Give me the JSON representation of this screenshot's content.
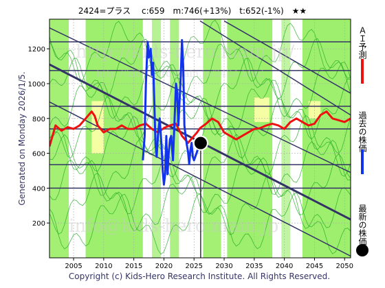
{
  "chart_data": {
    "type": "line",
    "title": "2424=プラス　 c:659　m:746(+13%)　t:652(-1%)　★★",
    "side_label": "Generated on Monday 2026/1/5.",
    "footer": "Copyright (c) Kids-Hero Research Institute. All Rights Reserved.",
    "watermarks": [
      "http://kids-hero.main.jp/",
      "http://kids-hero.main.jp/2424.html",
      "info@kids-hero.main.jp"
    ],
    "xlim": [
      2001,
      2051
    ],
    "ylim": [
      0,
      1370
    ],
    "x_ticks": [
      2005,
      2010,
      2015,
      2020,
      2025,
      2030,
      2035,
      2040,
      2045,
      2050
    ],
    "y_ticks": [
      200,
      400,
      600,
      800,
      1000,
      1200
    ],
    "grid": true,
    "legend_position": "right-vertical",
    "colors": {
      "ai_forecast": "#ee1111",
      "past_price": "#1133ee",
      "latest_marker": "#000000",
      "green_band": "#99ee66",
      "green_lines": "#22aa22",
      "channel_lines": "#333366",
      "horizontal_levels": "#333366",
      "cursor_line": "#333333"
    },
    "legend": [
      {
        "label": "ＡＩ予測",
        "color": "#ee1111",
        "marker": "line"
      },
      {
        "label": "過去の株価",
        "color": "#1133ee",
        "marker": "line"
      },
      {
        "label": "最新の株価",
        "color": "#000000",
        "marker": "dot"
      }
    ],
    "horizontal_levels": [
      1240,
      1075,
      870,
      740,
      535,
      400
    ],
    "channel_lines": [
      {
        "from": [
          2001,
          1320
        ],
        "to": [
          2051,
          490
        ],
        "width": 1.5
      },
      {
        "from": [
          2001,
          1110
        ],
        "to": [
          2051,
          220
        ],
        "width": 3
      },
      {
        "from": [
          2001,
          895
        ],
        "to": [
          2051,
          10
        ],
        "width": 1.5
      },
      {
        "from": [
          2026,
          1360
        ],
        "to": [
          2051,
          820
        ],
        "width": 1.5
      },
      {
        "from": [
          2030,
          1360
        ],
        "to": [
          2051,
          945
        ],
        "width": 1.5
      }
    ],
    "latest": {
      "x": 2026.1,
      "y": 659
    },
    "series": [
      {
        "name": "ＡＩ予測",
        "x": [
          2001,
          2001.5,
          2002,
          2002.5,
          2003,
          2004,
          2005,
          2006,
          2007,
          2008,
          2008.5,
          2009,
          2010,
          2011,
          2012,
          2013,
          2014,
          2015,
          2016,
          2017,
          2018,
          2019,
          2020,
          2021,
          2022,
          2023,
          2024,
          2025,
          2025.5,
          2026,
          2027,
          2028,
          2029,
          2030,
          2031,
          2032,
          2033,
          2034,
          2035,
          2036,
          2037,
          2038,
          2039,
          2040,
          2041,
          2042,
          2043,
          2044,
          2045,
          2046,
          2047,
          2048,
          2049,
          2050,
          2051
        ],
        "values": [
          640,
          700,
          760,
          745,
          730,
          750,
          740,
          760,
          800,
          840,
          815,
          760,
          720,
          740,
          740,
          760,
          740,
          740,
          760,
          770,
          740,
          720,
          745,
          760,
          770,
          700,
          660,
          700,
          720,
          745,
          770,
          800,
          780,
          720,
          700,
          680,
          700,
          720,
          740,
          745,
          760,
          770,
          760,
          740,
          780,
          800,
          780,
          760,
          770,
          820,
          840,
          800,
          790,
          780,
          800
        ]
      },
      {
        "name": "過去の株価",
        "x": [
          2016.5,
          2016.8,
          2017,
          2017.3,
          2017.5,
          2017.8,
          2018,
          2018.2,
          2018.4,
          2018.6,
          2018.8,
          2019,
          2019.3,
          2019.6,
          2019.8,
          2020,
          2020.2,
          2020.4,
          2020.6,
          2020.8,
          2021,
          2021.2,
          2021.5,
          2021.8,
          2022,
          2022.2,
          2022.4,
          2022.6,
          2022.8,
          2023,
          2023.2,
          2023.4,
          2023.6,
          2023.8,
          2024,
          2024.2,
          2024.4,
          2024.6,
          2024.8,
          2025,
          2025.3,
          2025.6,
          2025.9
        ],
        "values": [
          560,
          700,
          1000,
          1240,
          1150,
          1200,
          1050,
          1120,
          900,
          650,
          580,
          700,
          800,
          650,
          500,
          420,
          480,
          700,
          480,
          600,
          680,
          700,
          560,
          820,
          1000,
          950,
          760,
          900,
          1050,
          1250,
          1100,
          760,
          700,
          650,
          610,
          540,
          620,
          660,
          580,
          560,
          590,
          620,
          659
        ]
      }
    ]
  }
}
